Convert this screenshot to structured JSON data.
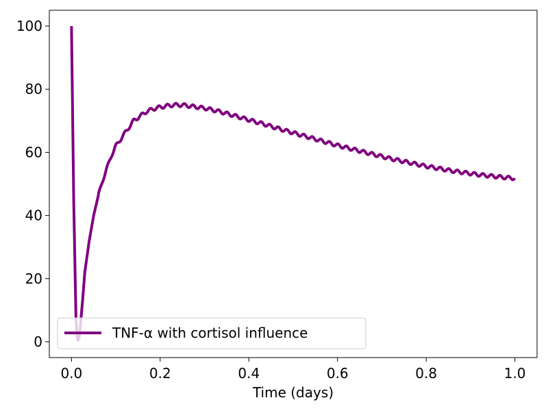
{
  "chart_data": {
    "type": "line",
    "title": "",
    "xlabel": "Time (days)",
    "ylabel": "",
    "xlim": [
      -0.05,
      1.05
    ],
    "ylim": [
      -5,
      105
    ],
    "xticks": [
      "0.0",
      "0.2",
      "0.4",
      "0.6",
      "0.8",
      "1.0"
    ],
    "yticks": [
      "0",
      "20",
      "40",
      "60",
      "80",
      "100"
    ],
    "grid": false,
    "legend_position": "lower left",
    "series": [
      {
        "name": "TNF-α with cortisol influence",
        "color": "#800080",
        "x": [
          0.0,
          0.005,
          0.01,
          0.013,
          0.015,
          0.018,
          0.02,
          0.025,
          0.03,
          0.04,
          0.05,
          0.06,
          0.07,
          0.08,
          0.09,
          0.1,
          0.11,
          0.12,
          0.13,
          0.14,
          0.15,
          0.16,
          0.17,
          0.18,
          0.19,
          0.2,
          0.21,
          0.22,
          0.23,
          0.24,
          0.25,
          0.26,
          0.27,
          0.28,
          0.3,
          0.32,
          0.34,
          0.36,
          0.38,
          0.4,
          0.42,
          0.44,
          0.46,
          0.48,
          0.5,
          0.52,
          0.54,
          0.56,
          0.58,
          0.6,
          0.62,
          0.64,
          0.66,
          0.68,
          0.7,
          0.72,
          0.74,
          0.76,
          0.78,
          0.8,
          0.82,
          0.84,
          0.86,
          0.88,
          0.9,
          0.92,
          0.94,
          0.96,
          0.98,
          1.0
        ],
        "y": [
          100,
          45,
          8,
          1,
          0.5,
          2,
          5,
          13,
          22,
          32,
          40,
          46,
          51,
          55,
          59,
          62,
          64,
          66,
          68,
          70,
          71,
          72,
          73,
          73.5,
          74,
          74.3,
          74.6,
          74.8,
          75,
          75,
          75,
          74.8,
          74.6,
          74.4,
          74,
          73.4,
          72.7,
          71.9,
          71.1,
          70.3,
          69.5,
          68.7,
          67.8,
          67.0,
          66.2,
          65.4,
          64.6,
          63.8,
          63.0,
          62.2,
          61.5,
          60.8,
          60.1,
          59.4,
          58.7,
          58.0,
          57.4,
          56.8,
          56.2,
          55.6,
          55.1,
          54.6,
          54.1,
          53.7,
          53.3,
          52.9,
          52.6,
          52.3,
          52.0,
          51.8
        ]
      }
    ]
  }
}
